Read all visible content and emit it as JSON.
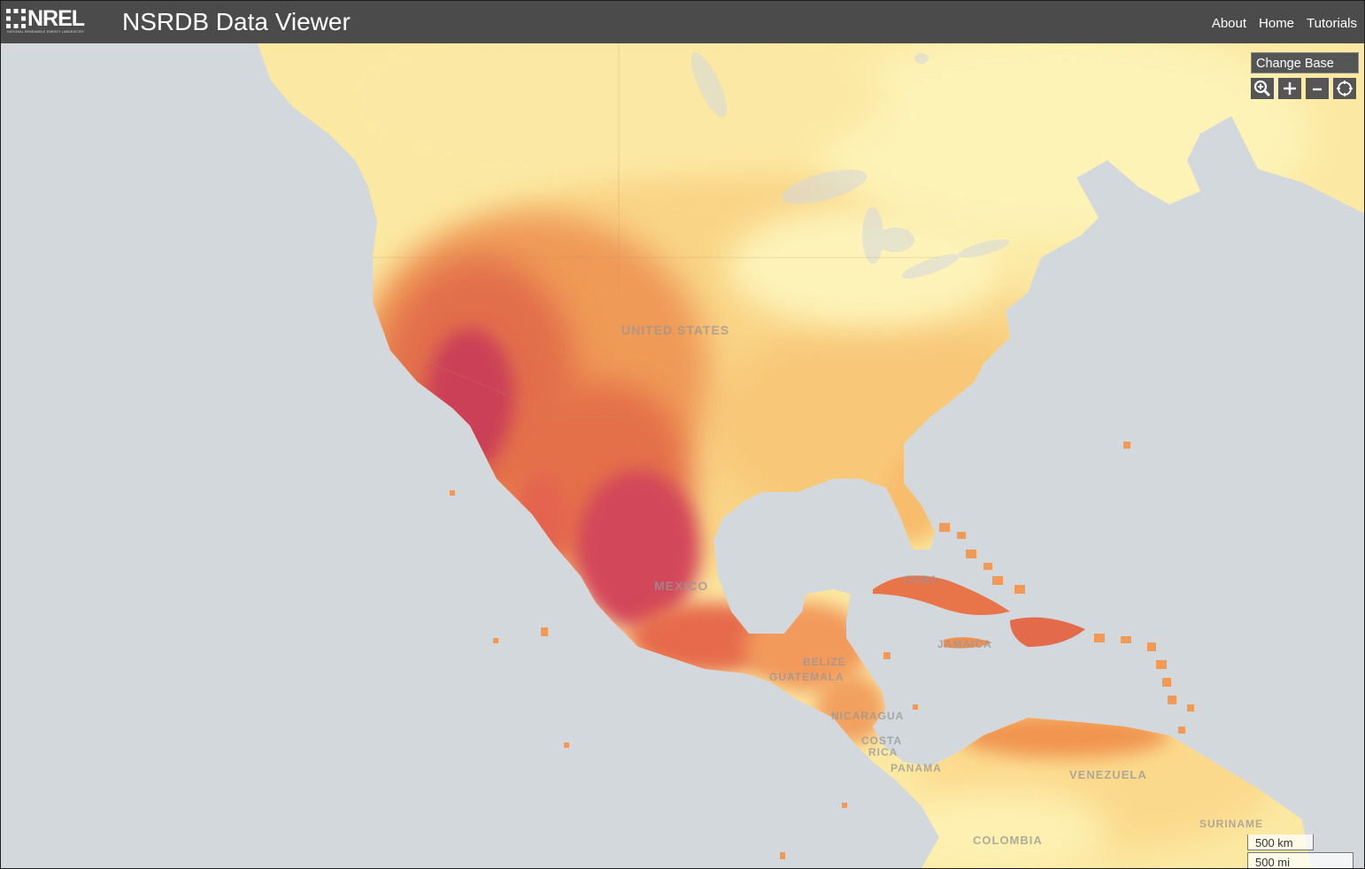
{
  "header": {
    "logo_text": "NREL",
    "logo_subtext": "NATIONAL RENEWABLE ENERGY LABORATORY",
    "title": "NSRDB Data Viewer",
    "nav": [
      "About",
      "Home",
      "Tutorials"
    ]
  },
  "map_controls": {
    "change_base_label": "Change Base",
    "tools": [
      {
        "icon": "zoom-box-icon",
        "glyph": "⊕"
      },
      {
        "icon": "plus-icon",
        "glyph": "+"
      },
      {
        "icon": "minus-icon",
        "glyph": "–"
      },
      {
        "icon": "locate-icon",
        "glyph": "⌖"
      }
    ]
  },
  "scale": {
    "km": "500 km",
    "mi": "500 mi"
  },
  "map_labels": {
    "united_states": "UNITED STATES",
    "mexico": "MEXICO",
    "cuba": "CUBA",
    "jamaica": "JAMAICA",
    "belize": "BELIZE",
    "guatemala": "GUATEMALA",
    "nicaragua": "NICARAGUA",
    "costa": "COSTA",
    "rica": "RICA",
    "panama": "PANAMA",
    "venezuela": "VENEZUELA",
    "colombia": "COLOMBIA",
    "suriname": "SURINAME"
  },
  "colors": {
    "ocean": "#d3d8dc",
    "header": "#4b4b4b",
    "irradiance_low": "#fdf3b6",
    "irradiance_mid": "#f7c46f",
    "irradiance_high": "#e8744a",
    "irradiance_peak": "#c8385a"
  }
}
